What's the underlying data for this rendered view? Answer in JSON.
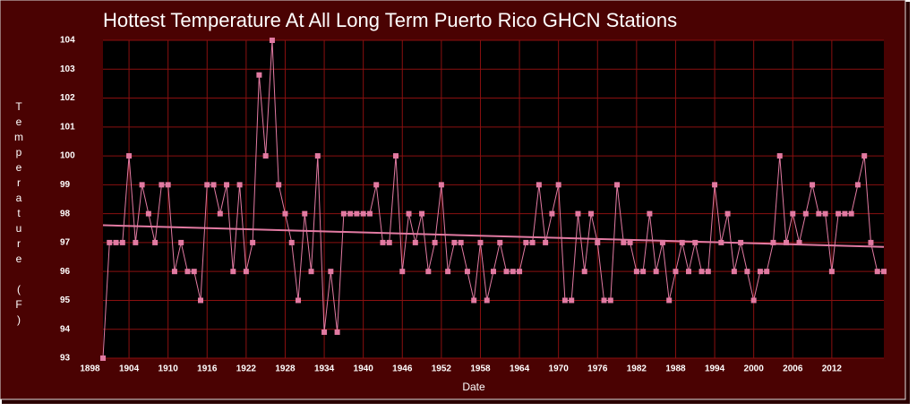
{
  "chart_data": {
    "type": "line",
    "title": "Hottest Temperature At All Long Term Puerto Rico GHCN Stations",
    "x_label": "Date",
    "y_label": "Temperature (F)",
    "x": [
      1900,
      1901,
      1902,
      1903,
      1904,
      1905,
      1906,
      1907,
      1908,
      1909,
      1910,
      1911,
      1912,
      1913,
      1914,
      1915,
      1916,
      1917,
      1918,
      1919,
      1920,
      1921,
      1922,
      1923,
      1924,
      1925,
      1926,
      1927,
      1928,
      1929,
      1930,
      1931,
      1932,
      1933,
      1934,
      1935,
      1936,
      1937,
      1938,
      1939,
      1940,
      1941,
      1942,
      1943,
      1944,
      1945,
      1946,
      1947,
      1948,
      1949,
      1950,
      1951,
      1952,
      1953,
      1954,
      1955,
      1956,
      1957,
      1958,
      1959,
      1960,
      1961,
      1962,
      1963,
      1964,
      1965,
      1966,
      1967,
      1968,
      1969,
      1970,
      1971,
      1972,
      1973,
      1974,
      1975,
      1976,
      1977,
      1978,
      1979,
      1980,
      1981,
      1982,
      1983,
      1984,
      1985,
      1986,
      1987,
      1988,
      1989,
      1990,
      1991,
      1992,
      1993,
      1994,
      1995,
      1996,
      1997,
      1998,
      1999,
      2000,
      2001,
      2002,
      2003,
      2004,
      2005,
      2006,
      2007,
      2008,
      2009,
      2010,
      2011,
      2012,
      2013,
      2014,
      2015,
      2016,
      2017,
      2018,
      2019,
      2020
    ],
    "series": [
      {
        "color": "#e27aa2",
        "values": [
          93,
          97,
          97,
          97,
          100,
          97,
          99,
          98,
          97,
          99,
          99,
          96,
          97,
          96,
          96,
          95,
          99,
          99,
          98,
          99,
          96,
          99,
          96,
          97,
          102.8,
          100,
          104,
          99,
          98,
          97,
          95,
          98,
          96,
          100,
          93.9,
          96,
          93.9,
          98,
          98,
          98,
          98,
          98,
          99,
          97,
          97,
          100,
          96,
          98,
          97,
          98,
          96,
          97,
          99,
          96,
          97,
          97,
          96,
          95,
          97,
          95,
          96,
          97,
          96,
          96,
          96,
          97,
          97,
          99,
          97,
          98,
          99,
          95,
          95,
          98,
          96,
          98,
          97,
          95,
          95,
          99,
          97,
          97,
          96,
          96,
          98,
          96,
          97,
          95,
          96,
          97,
          96,
          97,
          96,
          96,
          99,
          97,
          98,
          96,
          97,
          96,
          95,
          96,
          96,
          97,
          100,
          97,
          98,
          97,
          98,
          99,
          98,
          98,
          96,
          98,
          98,
          98,
          99,
          100,
          97,
          96,
          96
        ]
      }
    ],
    "trend": {
      "color": "#e27aa2",
      "x": [
        1900,
        2020
      ],
      "values": [
        97.6,
        96.85
      ]
    },
    "xlim": [
      1900,
      2020
    ],
    "xticks": [
      1898,
      1904,
      1910,
      1916,
      1922,
      1928,
      1934,
      1940,
      1946,
      1952,
      1958,
      1964,
      1970,
      1976,
      1982,
      1988,
      1994,
      2000,
      2006,
      2012
    ],
    "ylim": [
      93,
      104
    ],
    "yticks": [
      93,
      94,
      95,
      96,
      97,
      98,
      99,
      100,
      101,
      102,
      103,
      104
    ],
    "grid": true
  }
}
